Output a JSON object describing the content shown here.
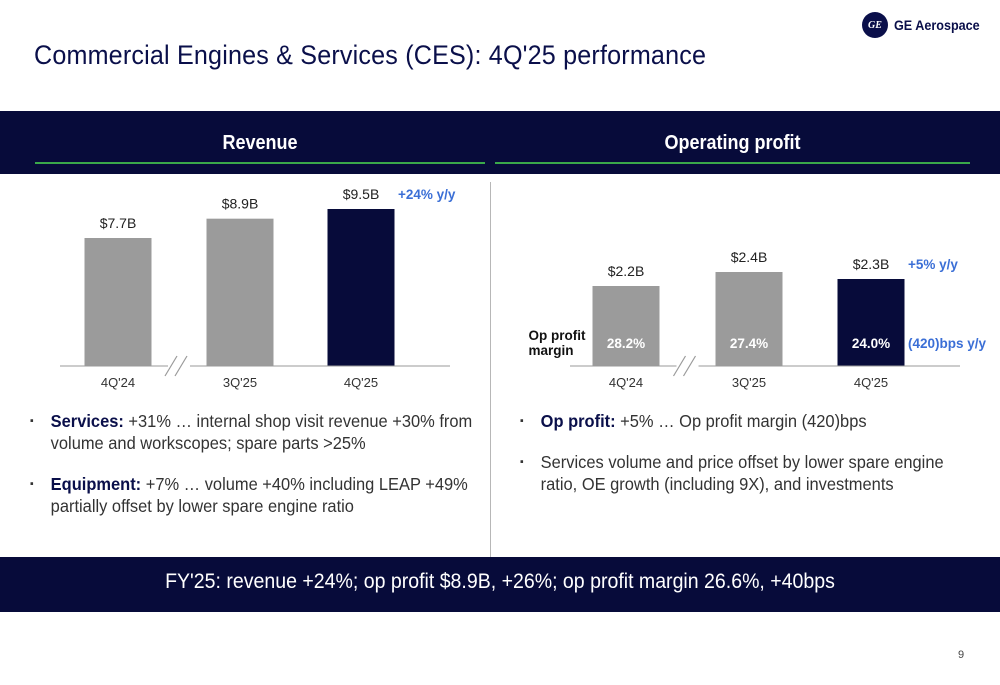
{
  "title": "Commercial Engines & Services (CES): 4Q'25 performance",
  "logo": {
    "mark": "GE",
    "text": "GE Aerospace"
  },
  "sections": {
    "revenue_title": "Revenue",
    "op_title": "Operating profit"
  },
  "chart_data": [
    {
      "type": "bar",
      "title": "Revenue",
      "categories": [
        "4Q'24",
        "3Q'25",
        "4Q'25"
      ],
      "values": [
        7.7,
        8.9,
        9.5
      ],
      "value_labels": [
        "$7.7B",
        "$8.9B",
        "$9.5B"
      ],
      "unit": "$B",
      "annotation": "+24% y/y",
      "highlight_index": 2,
      "colors": {
        "bar": "#9b9b9b",
        "highlight": "#070b3a",
        "annotation": "#3b6fd6"
      },
      "axis_break": true
    },
    {
      "type": "bar",
      "title": "Operating profit",
      "categories": [
        "4Q'24",
        "3Q'25",
        "4Q'25"
      ],
      "values": [
        2.2,
        2.4,
        2.3
      ],
      "value_labels": [
        "$2.2B",
        "$2.4B",
        "$2.3B"
      ],
      "unit": "$B",
      "margin_label": "Op profit margin",
      "margins": [
        "28.2%",
        "27.4%",
        "24.0%"
      ],
      "annotation": "+5% y/y",
      "margin_annotation": "(420)bps y/y",
      "highlight_index": 2,
      "colors": {
        "bar": "#9b9b9b",
        "highlight": "#070b3a",
        "annotation": "#3b6fd6"
      },
      "axis_break": true
    }
  ],
  "left_bullets": [
    {
      "bold": "Services:",
      "text": " +31% … internal shop visit revenue +30% from volume and workscopes; spare parts >25%"
    },
    {
      "bold": "Equipment:",
      "text": " +7% … volume +40% including LEAP +49% partially offset by lower spare engine ratio"
    }
  ],
  "right_bullets": [
    {
      "bold": "Op profit:",
      "text": " +5% … Op profit margin (420)bps"
    },
    {
      "bold": "",
      "text": "Services volume and price offset by lower spare engine ratio, OE growth (including 9X), and investments"
    }
  ],
  "bullet_glyph": "▪",
  "footer": "FY'25: revenue +24%; op profit $8.9B, +26%; op profit margin 26.6%, +40bps",
  "page_number": "9"
}
